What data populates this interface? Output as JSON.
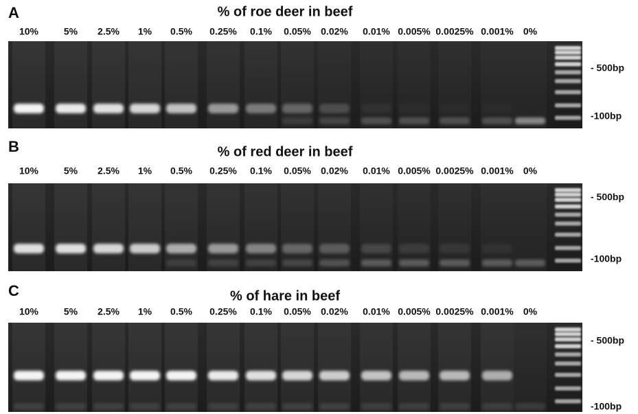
{
  "panels": [
    {
      "letter": "A",
      "title": "% of roe deer in beef",
      "lanes": [
        "10%",
        "5%",
        "2.5%",
        "1%",
        "0.5%",
        "0.25%",
        "0.1%",
        "0.05%",
        "0.02%",
        "0.01%",
        "0.005%",
        "0.0025%",
        "0.001%",
        "0%"
      ],
      "markers": [
        "- 500bp",
        "-100bp"
      ]
    },
    {
      "letter": "B",
      "title": "% of red deer in beef",
      "lanes": [
        "10%",
        "5%",
        "2.5%",
        "1%",
        "0.5%",
        "0.25%",
        "0.1%",
        "0.05%",
        "0.02%",
        "0.01%",
        "0.005%",
        "0.0025%",
        "0.001%",
        "0%"
      ],
      "markers": [
        "- 500bp",
        "-100bp"
      ]
    },
    {
      "letter": "C",
      "title": "% of hare in beef",
      "lanes": [
        "10%",
        "5%",
        "2.5%",
        "1%",
        "0.5%",
        "0.25%",
        "0.1%",
        "0.05%",
        "0.02%",
        "0.01%",
        "0.005%",
        "0.0025%",
        "0.001%",
        "0%"
      ],
      "markers": [
        "- 500bp",
        "-100bp"
      ]
    }
  ]
}
